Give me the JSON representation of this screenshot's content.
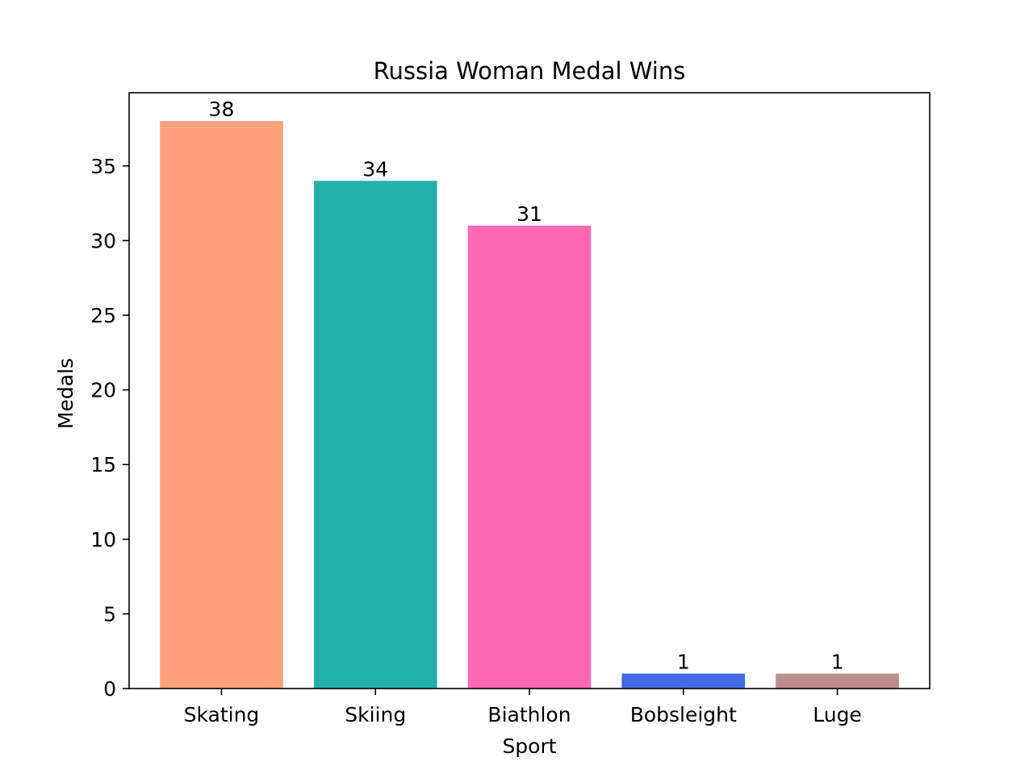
{
  "chart_data": {
    "type": "bar",
    "title": "Russia Woman Medal Wins",
    "xlabel": "Sport",
    "ylabel": "Medals",
    "categories": [
      "Skating",
      "Skiing",
      "Biathlon",
      "Bobsleight",
      "Luge"
    ],
    "values": [
      38,
      34,
      31,
      1,
      1
    ],
    "data_labels": [
      "38",
      "34",
      "31",
      "1",
      "1"
    ],
    "colors": [
      "#FFA07A",
      "#20B2AA",
      "#FF69B4",
      "#4169E1",
      "#BC8F8F"
    ],
    "ylim": [
      0,
      39.9
    ],
    "yticks": [
      0,
      5,
      10,
      15,
      20,
      25,
      30,
      35
    ],
    "ytick_labels": [
      "0",
      "5",
      "10",
      "15",
      "20",
      "25",
      "30",
      "35"
    ],
    "grid": false,
    "legend": "none"
  }
}
